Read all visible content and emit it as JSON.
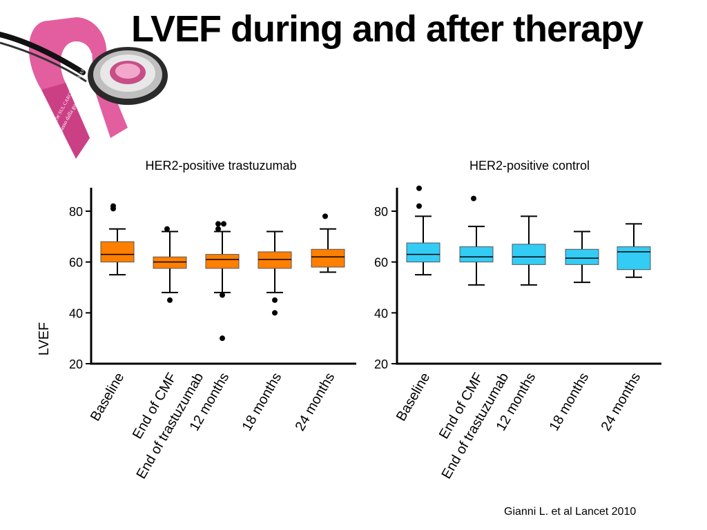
{
  "slide": {
    "title": "LVEF during and after therapy",
    "citation": "Gianni L. et al Lancet 2010"
  },
  "logo": {
    "ribbon_color": "#e0559a",
    "ribbon_text_line1": "OVERVIEW SUL CARCINOMA MAMMARIO",
    "ribbon_text_line2": "a un passo dalla guarigione?",
    "icon": "pink-ribbon-stethoscope-icon"
  },
  "chart_data": [
    {
      "type": "box",
      "title": "HER2-positive trastuzumab",
      "ylabel": "LVEF",
      "ylim": [
        20,
        90
      ],
      "yticks": [
        20,
        40,
        60,
        80
      ],
      "color": "#ff7f00",
      "categories": [
        "Baseline",
        "End of CMF",
        "End of trastuzumab",
        "12 months",
        "18 months",
        "24 months"
      ],
      "boxes": [
        {
          "category": "Baseline",
          "min": 55,
          "q1": 60,
          "median": 63,
          "q3": 68,
          "max": 73,
          "outliers": [
            81,
            82
          ]
        },
        {
          "category": "End of CMF",
          "min": 48,
          "q1": 57.5,
          "median": 60,
          "q3": 62,
          "max": 72,
          "outliers": [
            73,
            45
          ]
        },
        {
          "category": "12 months",
          "min": 48,
          "q1": 57.5,
          "median": 61,
          "q3": 63,
          "max": 72,
          "outliers": [
            75,
            75,
            73,
            47,
            30
          ]
        },
        {
          "category": "18 months",
          "min": 48,
          "q1": 57.5,
          "median": 61,
          "q3": 64,
          "max": 72,
          "outliers": [
            45,
            40
          ]
        },
        {
          "category": "24 months",
          "min": 56,
          "q1": 58,
          "median": 62,
          "q3": 65,
          "max": 73,
          "outliers": [
            78
          ]
        }
      ]
    },
    {
      "type": "box",
      "title": "HER2-positive control",
      "ylabel": "",
      "ylim": [
        20,
        90
      ],
      "yticks": [
        20,
        40,
        60,
        80
      ],
      "color": "#33ccf5",
      "categories": [
        "Baseline",
        "End of CMF",
        "End of trastuzumab",
        "12 months",
        "18 months",
        "24 months"
      ],
      "boxes": [
        {
          "category": "Baseline",
          "min": 55,
          "q1": 60,
          "median": 63,
          "q3": 67.5,
          "max": 78,
          "outliers": [
            89,
            82
          ]
        },
        {
          "category": "End of CMF",
          "min": 51,
          "q1": 60,
          "median": 62,
          "q3": 66,
          "max": 74,
          "outliers": [
            85
          ]
        },
        {
          "category": "12 months",
          "min": 51,
          "q1": 59,
          "median": 62,
          "q3": 67,
          "max": 78,
          "outliers": []
        },
        {
          "category": "18 months",
          "min": 52,
          "q1": 59,
          "median": 61.5,
          "q3": 65,
          "max": 72,
          "outliers": []
        },
        {
          "category": "24 months",
          "min": 54,
          "q1": 57,
          "median": 64,
          "q3": 66,
          "max": 75,
          "outliers": []
        }
      ]
    }
  ]
}
